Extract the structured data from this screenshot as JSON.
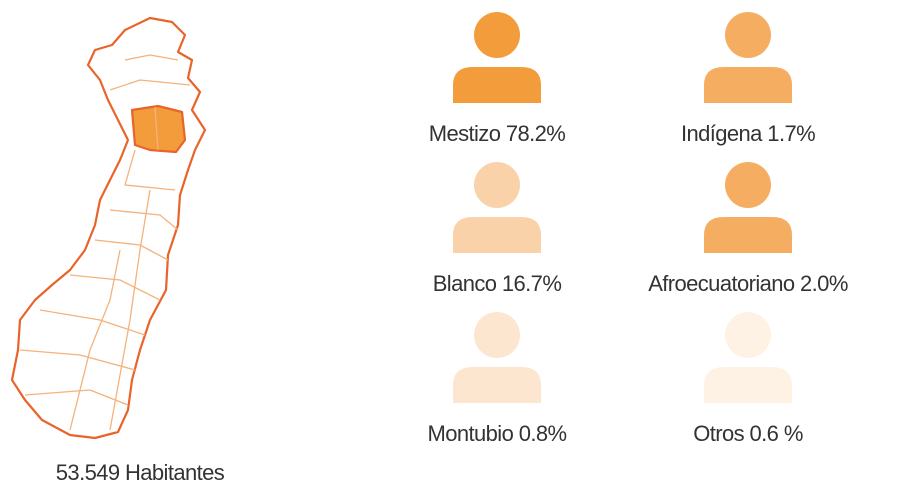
{
  "population_label": "53.549 Habitantes",
  "groups": [
    {
      "label": "Mestizo 78.2%",
      "color": "#f39c3c"
    },
    {
      "label": "Indígena 1.7%",
      "color": "#f5ad61"
    },
    {
      "label": "Blanco 16.7%",
      "color": "#fad2aa"
    },
    {
      "label": "Afroecuatoriano 2.0%",
      "color": "#f5ad61"
    },
    {
      "label": "Montubio 0.8%",
      "color": "#fde6cf"
    },
    {
      "label": "Otros 0.6 %",
      "color": "#fef2e5"
    }
  ]
}
